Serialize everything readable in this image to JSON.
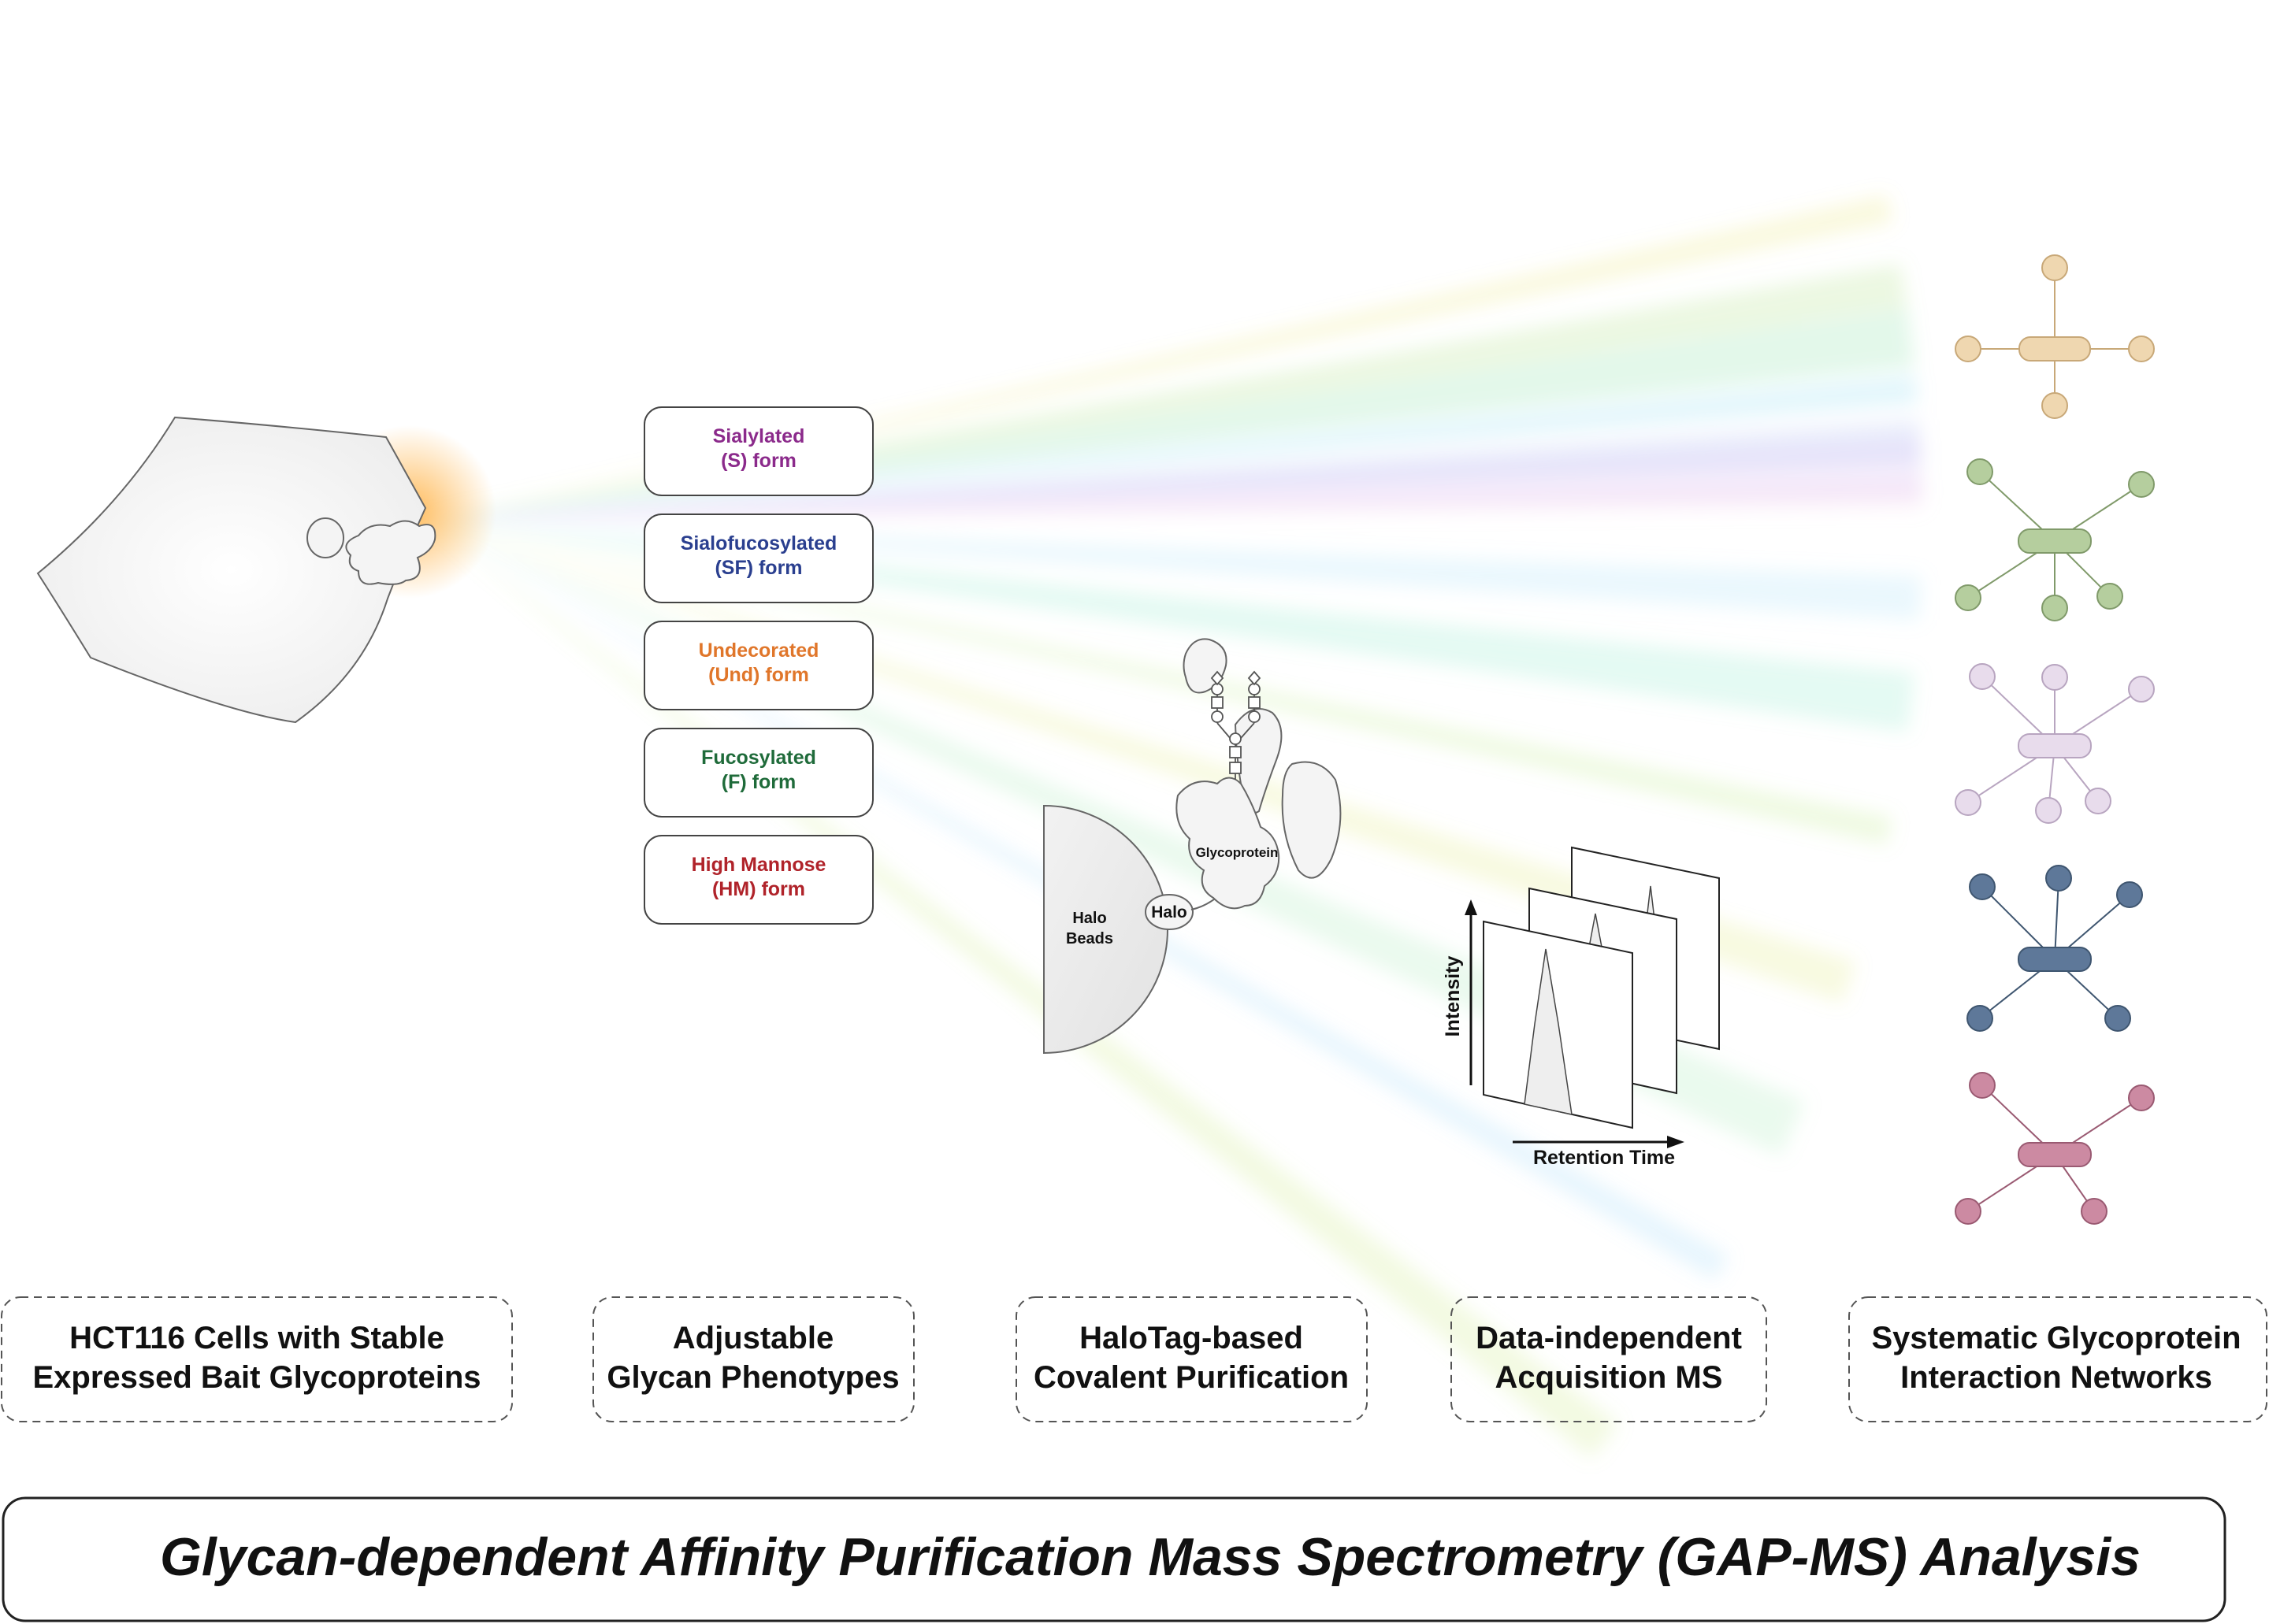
{
  "glycan_forms": [
    {
      "line1": "Sialylated",
      "line2": "(S) form",
      "color": "#8B2A8B"
    },
    {
      "line1": "Sialofucosylated",
      "line2": "(SF) form",
      "color": "#2A3F8F"
    },
    {
      "line1": "Undecorated",
      "line2": "(Und) form",
      "color": "#E0762A"
    },
    {
      "line1": "Fucosylated",
      "line2": "(F) form",
      "color": "#1F6B3A"
    },
    {
      "line1": "High Mannose",
      "line2": "(HM) form",
      "color": "#B0232A"
    }
  ],
  "halo": {
    "beads_line1": "Halo",
    "beads_line2": "Beads",
    "tag": "Halo",
    "glycoprotein": "Glycoprotein"
  },
  "ms": {
    "y_axis": "Intensity",
    "x_axis": "Retention Time"
  },
  "networks": [
    {
      "fill": "#EFD7B0",
      "stroke": "#C8A878"
    },
    {
      "fill": "#B5CE9E",
      "stroke": "#809A6A"
    },
    {
      "fill": "#E8DCEC",
      "stroke": "#B8A5C0"
    },
    {
      "fill": "#5E7899",
      "stroke": "#3F5670"
    },
    {
      "fill": "#CC8AA2",
      "stroke": "#9A5A72"
    }
  ],
  "stages": [
    {
      "line1": "HCT116 Cells with Stable",
      "line2": "Expressed Bait Glycoproteins"
    },
    {
      "line1": "Adjustable",
      "line2": "Glycan Phenotypes"
    },
    {
      "line1": "HaloTag-based",
      "line2": "Covalent Purification"
    },
    {
      "line1": "Data-independent",
      "line2": "Acquisition MS"
    },
    {
      "line1": "Systematic Glycoprotein",
      "line2": "Interaction Networks"
    }
  ],
  "title": "Glycan-dependent Affinity Purification Mass Spectrometry (GAP-MS) Analysis"
}
